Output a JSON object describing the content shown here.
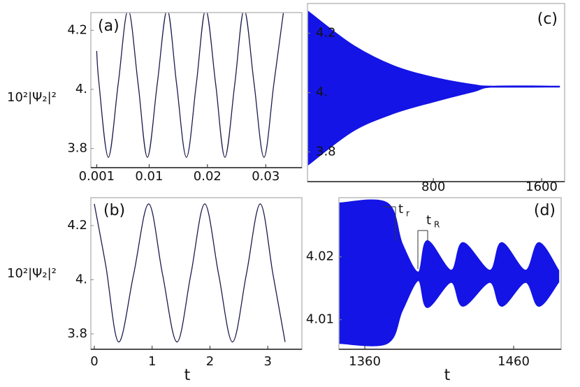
{
  "chart_data": [
    {
      "type": "line",
      "title": "(a)",
      "ylabel": "10²|Ψ₂|²",
      "color": "#1c1c4c",
      "x": [
        0.001,
        0.0014,
        0.003,
        0.0047,
        0.0064,
        0.0081,
        0.0097,
        0.0114,
        0.0131,
        0.0147,
        0.0164,
        0.0181,
        0.0197,
        0.0214,
        0.023,
        0.0247,
        0.0263,
        0.028,
        0.0297,
        0.0314,
        0.0331
      ],
      "values": [
        4.13,
        4.02,
        3.77,
        4.02,
        4.27,
        4.02,
        3.77,
        4.02,
        4.27,
        4.02,
        3.77,
        4.02,
        4.27,
        4.02,
        3.77,
        4.02,
        4.27,
        4.02,
        3.77,
        4.02,
        4.27
      ],
      "xlim": [
        0,
        0.0362
      ],
      "ylim": [
        3.735,
        4.26
      ],
      "xticks": [
        0.001,
        0.01,
        0.02,
        0.03
      ],
      "yticks": [
        3.8,
        {
          "value": 4,
          "label": "4."
        },
        4.2
      ]
    },
    {
      "type": "line",
      "title": "(b)",
      "ylabel": "10²|Ψ₂|²",
      "xlabel": "t",
      "color": "#1c1c4c",
      "x": [
        0,
        0.2,
        0.42,
        0.68,
        0.94,
        1.18,
        1.43,
        1.67,
        1.91,
        2.15,
        2.39,
        2.63,
        2.87,
        3.09,
        3.3
      ],
      "values": [
        4.28,
        4.05,
        3.77,
        4.02,
        4.28,
        4.02,
        3.77,
        4.02,
        4.28,
        4.02,
        3.77,
        4.02,
        4.28,
        4.02,
        3.77
      ],
      "xlim": [
        -0.06,
        3.59
      ],
      "ylim": [
        3.743,
        4.303
      ],
      "xticks": [
        0,
        1,
        2,
        3
      ],
      "yticks": [
        3.8,
        {
          "value": 4,
          "label": "4."
        },
        4.2
      ]
    },
    {
      "type": "band",
      "title": "(c)",
      "color": "#1414e6",
      "x": [
        -120,
        200,
        500,
        800,
        1100,
        1240,
        1735
      ],
      "upper": [
        4.27,
        4.16,
        4.09,
        4.05,
        4.025,
        4.02,
        4.02
      ],
      "lower": [
        3.76,
        3.87,
        3.93,
        3.97,
        4.005,
        4.02,
        4.02
      ],
      "xlim": [
        -130,
        1770
      ],
      "ylim": [
        3.7,
        4.3
      ],
      "xticks": [
        800,
        1600
      ],
      "yticks": [
        3.8,
        {
          "value": 4,
          "label": "4."
        },
        4.2
      ]
    },
    {
      "type": "band",
      "title": "(d)",
      "xlabel": "t",
      "color": "#1414e6",
      "x": [
        1343,
        1375,
        1385,
        1396,
        1402,
        1418,
        1426,
        1444,
        1452,
        1468,
        1477,
        1490
      ],
      "upper": [
        4.0285,
        4.0285,
        4.022,
        4.0175,
        4.0225,
        4.0178,
        4.0222,
        4.0178,
        4.0222,
        4.0178,
        4.0222,
        4.0178
      ],
      "lower": [
        4.0063,
        4.0063,
        4.0115,
        4.0163,
        4.012,
        4.016,
        4.0122,
        4.016,
        4.0122,
        4.016,
        4.0122,
        4.016
      ],
      "xlim": [
        1342.6,
        1491.9
      ],
      "ylim": [
        4.0053,
        4.0294
      ],
      "xticks": [
        1360,
        1460
      ],
      "yticks": [
        4.01,
        4.02
      ],
      "annotations": [
        {
          "text": "t",
          "sub": "r"
        },
        {
          "text": "t",
          "sub": "R"
        }
      ]
    }
  ]
}
